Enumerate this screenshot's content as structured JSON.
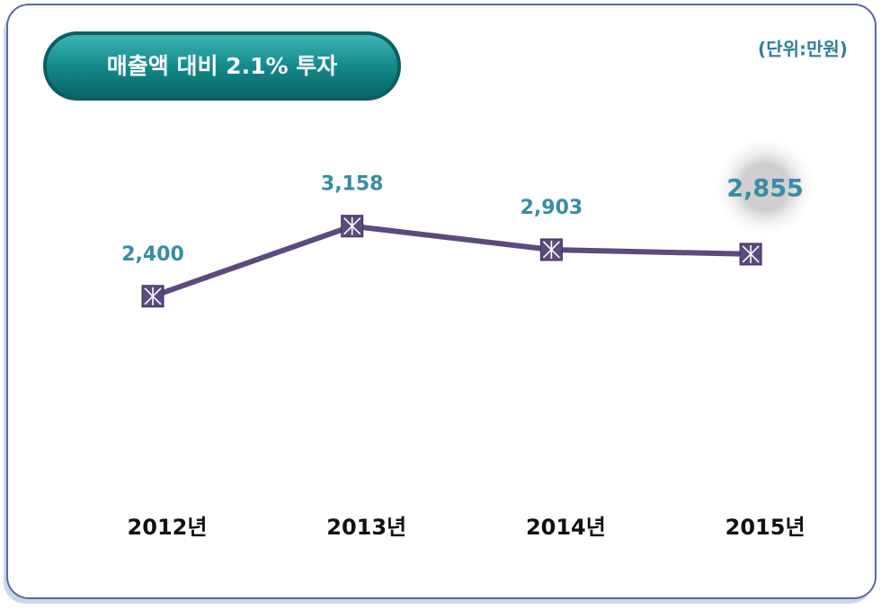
{
  "chart_data": {
    "type": "line",
    "title": "매출액 대비 2.1% 투자",
    "unit_label": "(단위:만원)",
    "categories": [
      "2012년",
      "2013년",
      "2014년",
      "2015년"
    ],
    "values": [
      2400,
      3158,
      2903,
      2855
    ],
    "value_labels": [
      "2,400",
      "3,158",
      "2,903",
      "2,855"
    ],
    "color": "#5b4a7e",
    "ylim": [
      0,
      5000
    ]
  }
}
